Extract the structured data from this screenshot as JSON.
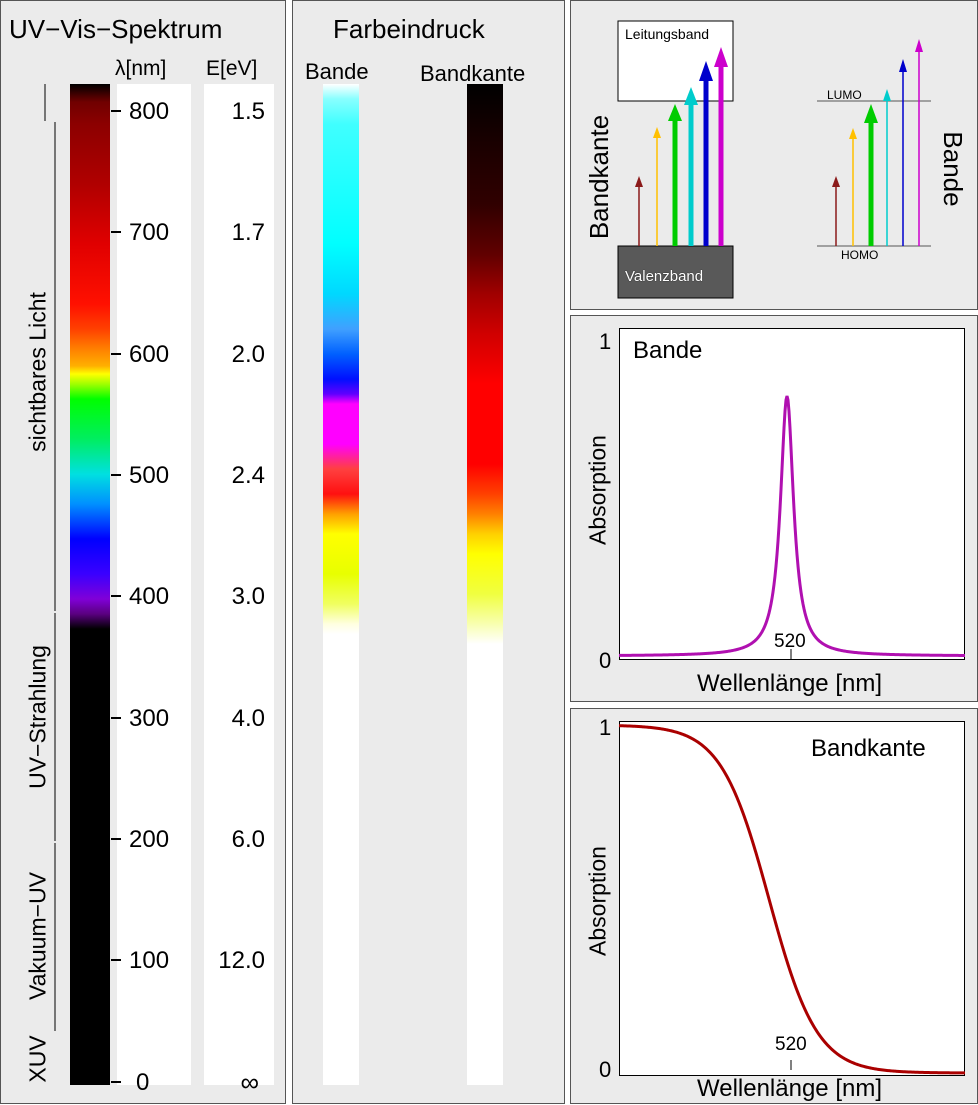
{
  "spectrum_panel": {
    "title": "UV−Vis−Spektrum",
    "col_lambda": "λ[nm]",
    "col_energy": "E[eV]",
    "ticks": [
      {
        "nm": "800",
        "ev": "1.5"
      },
      {
        "nm": "700",
        "ev": "1.7"
      },
      {
        "nm": "600",
        "ev": "2.0"
      },
      {
        "nm": "500",
        "ev": "2.4"
      },
      {
        "nm": "400",
        "ev": "3.0"
      },
      {
        "nm": "300",
        "ev": "4.0"
      },
      {
        "nm": "200",
        "ev": "6.0"
      },
      {
        "nm": "100",
        "ev": "12.0"
      },
      {
        "nm": "0",
        "ev": "∞"
      }
    ],
    "regions": {
      "visible": "sichtbares Licht",
      "uv": "UV−Strahlung",
      "vacuum_uv": "Vakuum−UV",
      "xuv": "XUV"
    }
  },
  "color_panel": {
    "title": "Farbeindruck",
    "band_label": "Bande",
    "edge_label": "Bandkante"
  },
  "energy_diagram": {
    "conduction_band": "Leitungsband",
    "valence_band": "Valenzband",
    "edge_label": "Bandkante",
    "lumo": "LUMO",
    "homo": "HOMO",
    "band_label": "Bande",
    "colors": {
      "red": "#8b1a1a",
      "yellow": "#ffc000",
      "green": "#00cc00",
      "cyan": "#00cccc",
      "blue": "#0000cc",
      "magenta": "#cc00cc"
    }
  },
  "band_plot": {
    "legend": "Bande",
    "ylabel": "Absorption",
    "xlabel": "Wellenlänge [nm]",
    "y_top": "1",
    "y_bottom": "0",
    "marker": "520",
    "line_color": "#b010b0"
  },
  "edge_plot": {
    "legend": "Bandkante",
    "ylabel": "Absorption",
    "xlabel": "Wellenlänge [nm]",
    "y_top": "1",
    "y_bottom": "0",
    "marker": "520",
    "line_color": "#aa0000"
  }
}
